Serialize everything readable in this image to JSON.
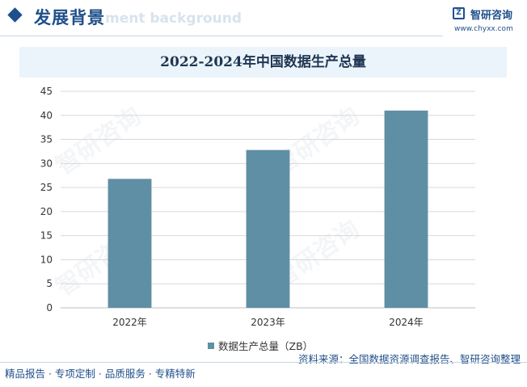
{
  "header": {
    "title": "发展背景",
    "ghost_text": "ment background"
  },
  "logo": {
    "name": "智研咨询",
    "url": "www.chyxx.com",
    "mark": "Z"
  },
  "watermark_text": "智研咨询",
  "chart_data": {
    "type": "bar",
    "title": "2022-2024年中国数据生产总量",
    "categories": [
      "2022年",
      "2023年",
      "2024年"
    ],
    "series": [
      {
        "name": "数据生产总量（ZB）",
        "values": [
          26.8,
          32.8,
          41.0
        ],
        "color": "#5f8fa5"
      }
    ],
    "ylim": [
      0,
      45
    ],
    "yticks": [
      "0",
      "5",
      "10",
      "15",
      "20",
      "25",
      "30",
      "35",
      "40",
      "45"
    ],
    "grid": true,
    "legend_position": "bottom"
  },
  "footer": {
    "source": "资料来源：全国数据资源调查报告、智研咨询整理",
    "slogan": "精品报告 · 专项定制 · 品质服务 · 专精特新"
  }
}
